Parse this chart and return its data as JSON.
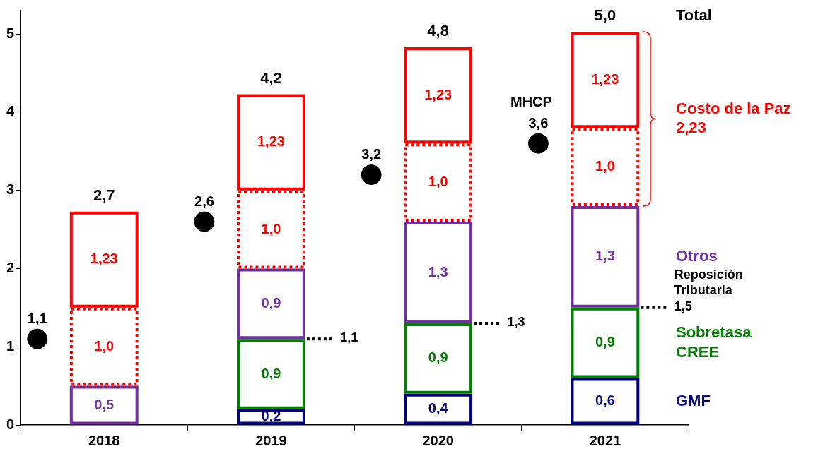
{
  "chart_data": {
    "type": "bar",
    "stacked": true,
    "categories": [
      "2018",
      "2019",
      "2020",
      "2021"
    ],
    "series": [
      {
        "name": "GMF",
        "color": "#000080",
        "values": [
          null,
          0.2,
          0.4,
          0.6
        ],
        "value_labels": [
          null,
          "0,2",
          "0,4",
          "0,6"
        ]
      },
      {
        "name": "Sobretasa CREE",
        "color": "#008000",
        "values": [
          null,
          0.9,
          0.9,
          0.9
        ],
        "value_labels": [
          null,
          "0,9",
          "0,9",
          "0,9"
        ]
      },
      {
        "name": "Otros",
        "color": "#7030a0",
        "values": [
          0.5,
          0.9,
          1.3,
          1.3
        ],
        "value_labels": [
          "0,5",
          "0,9",
          "1,3",
          "1,3"
        ]
      },
      {
        "color": "#ff0000",
        "line_style": "dotted",
        "values": [
          1.0,
          1.0,
          1.0,
          1.0
        ],
        "value_labels": [
          "1,0",
          "1,0",
          "1,0",
          "1,0"
        ]
      },
      {
        "color": "#ff0000",
        "values": [
          1.23,
          1.23,
          1.23,
          1.23
        ],
        "value_labels": [
          "1,23",
          "1,23",
          "1,23",
          "1,23"
        ]
      },
      {
        "type": "scatter",
        "color": "#000000",
        "values": [
          1.1,
          2.6,
          3.2,
          3.6
        ],
        "value_labels": [
          "1,1",
          "2,6",
          "3,2",
          "3,6"
        ]
      }
    ],
    "totals": [
      "2,7",
      "4,2",
      "4,8",
      "5,0"
    ],
    "ylim": [
      0,
      5.3
    ],
    "yticks": [
      0,
      1,
      2,
      3,
      4,
      5
    ],
    "marker": "circle",
    "annotations": [
      "Total",
      "MHCP",
      "Costo de la Paz\n2,23",
      "1,1",
      "1,3",
      "Reposición\nTributaria\n1,5"
    ]
  }
}
